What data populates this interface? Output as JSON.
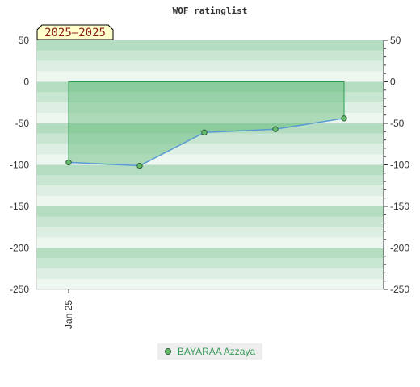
{
  "chart_data": {
    "type": "area",
    "title": "WOF ratinglist",
    "badge": "2025—2025",
    "x": [
      "",
      "",
      "",
      "",
      ""
    ],
    "x_tick_labels": [
      {
        "label": "Jan 25",
        "index": 0
      }
    ],
    "series": [
      {
        "name": "BAYARAA Azzaya",
        "values": [
          -97,
          -101,
          -61,
          -57,
          -44
        ]
      }
    ],
    "baseline": 0,
    "ylim": [
      -250,
      50
    ],
    "yticks": [
      50,
      0,
      -50,
      -100,
      -150,
      -200,
      -250
    ],
    "y_axis_both_sides": true,
    "grid": "horizontal bands",
    "legend_position": "bottom-center",
    "colors": {
      "band_dark": "#b3dcc0",
      "band_mid": "#c8e6d1",
      "band_light": "#dcefe2",
      "band_lightest": "#eef6f0",
      "area_fill": "#5cb874",
      "area_stroke": "#2e9e4e",
      "line": "#5a9bd5",
      "marker_fill": "#66bb6a",
      "marker_stroke": "#2e5e3a",
      "badge_bg": "#ffffcc",
      "badge_text": "#8b1a1a",
      "legend_text": "#3a9a5a"
    }
  }
}
